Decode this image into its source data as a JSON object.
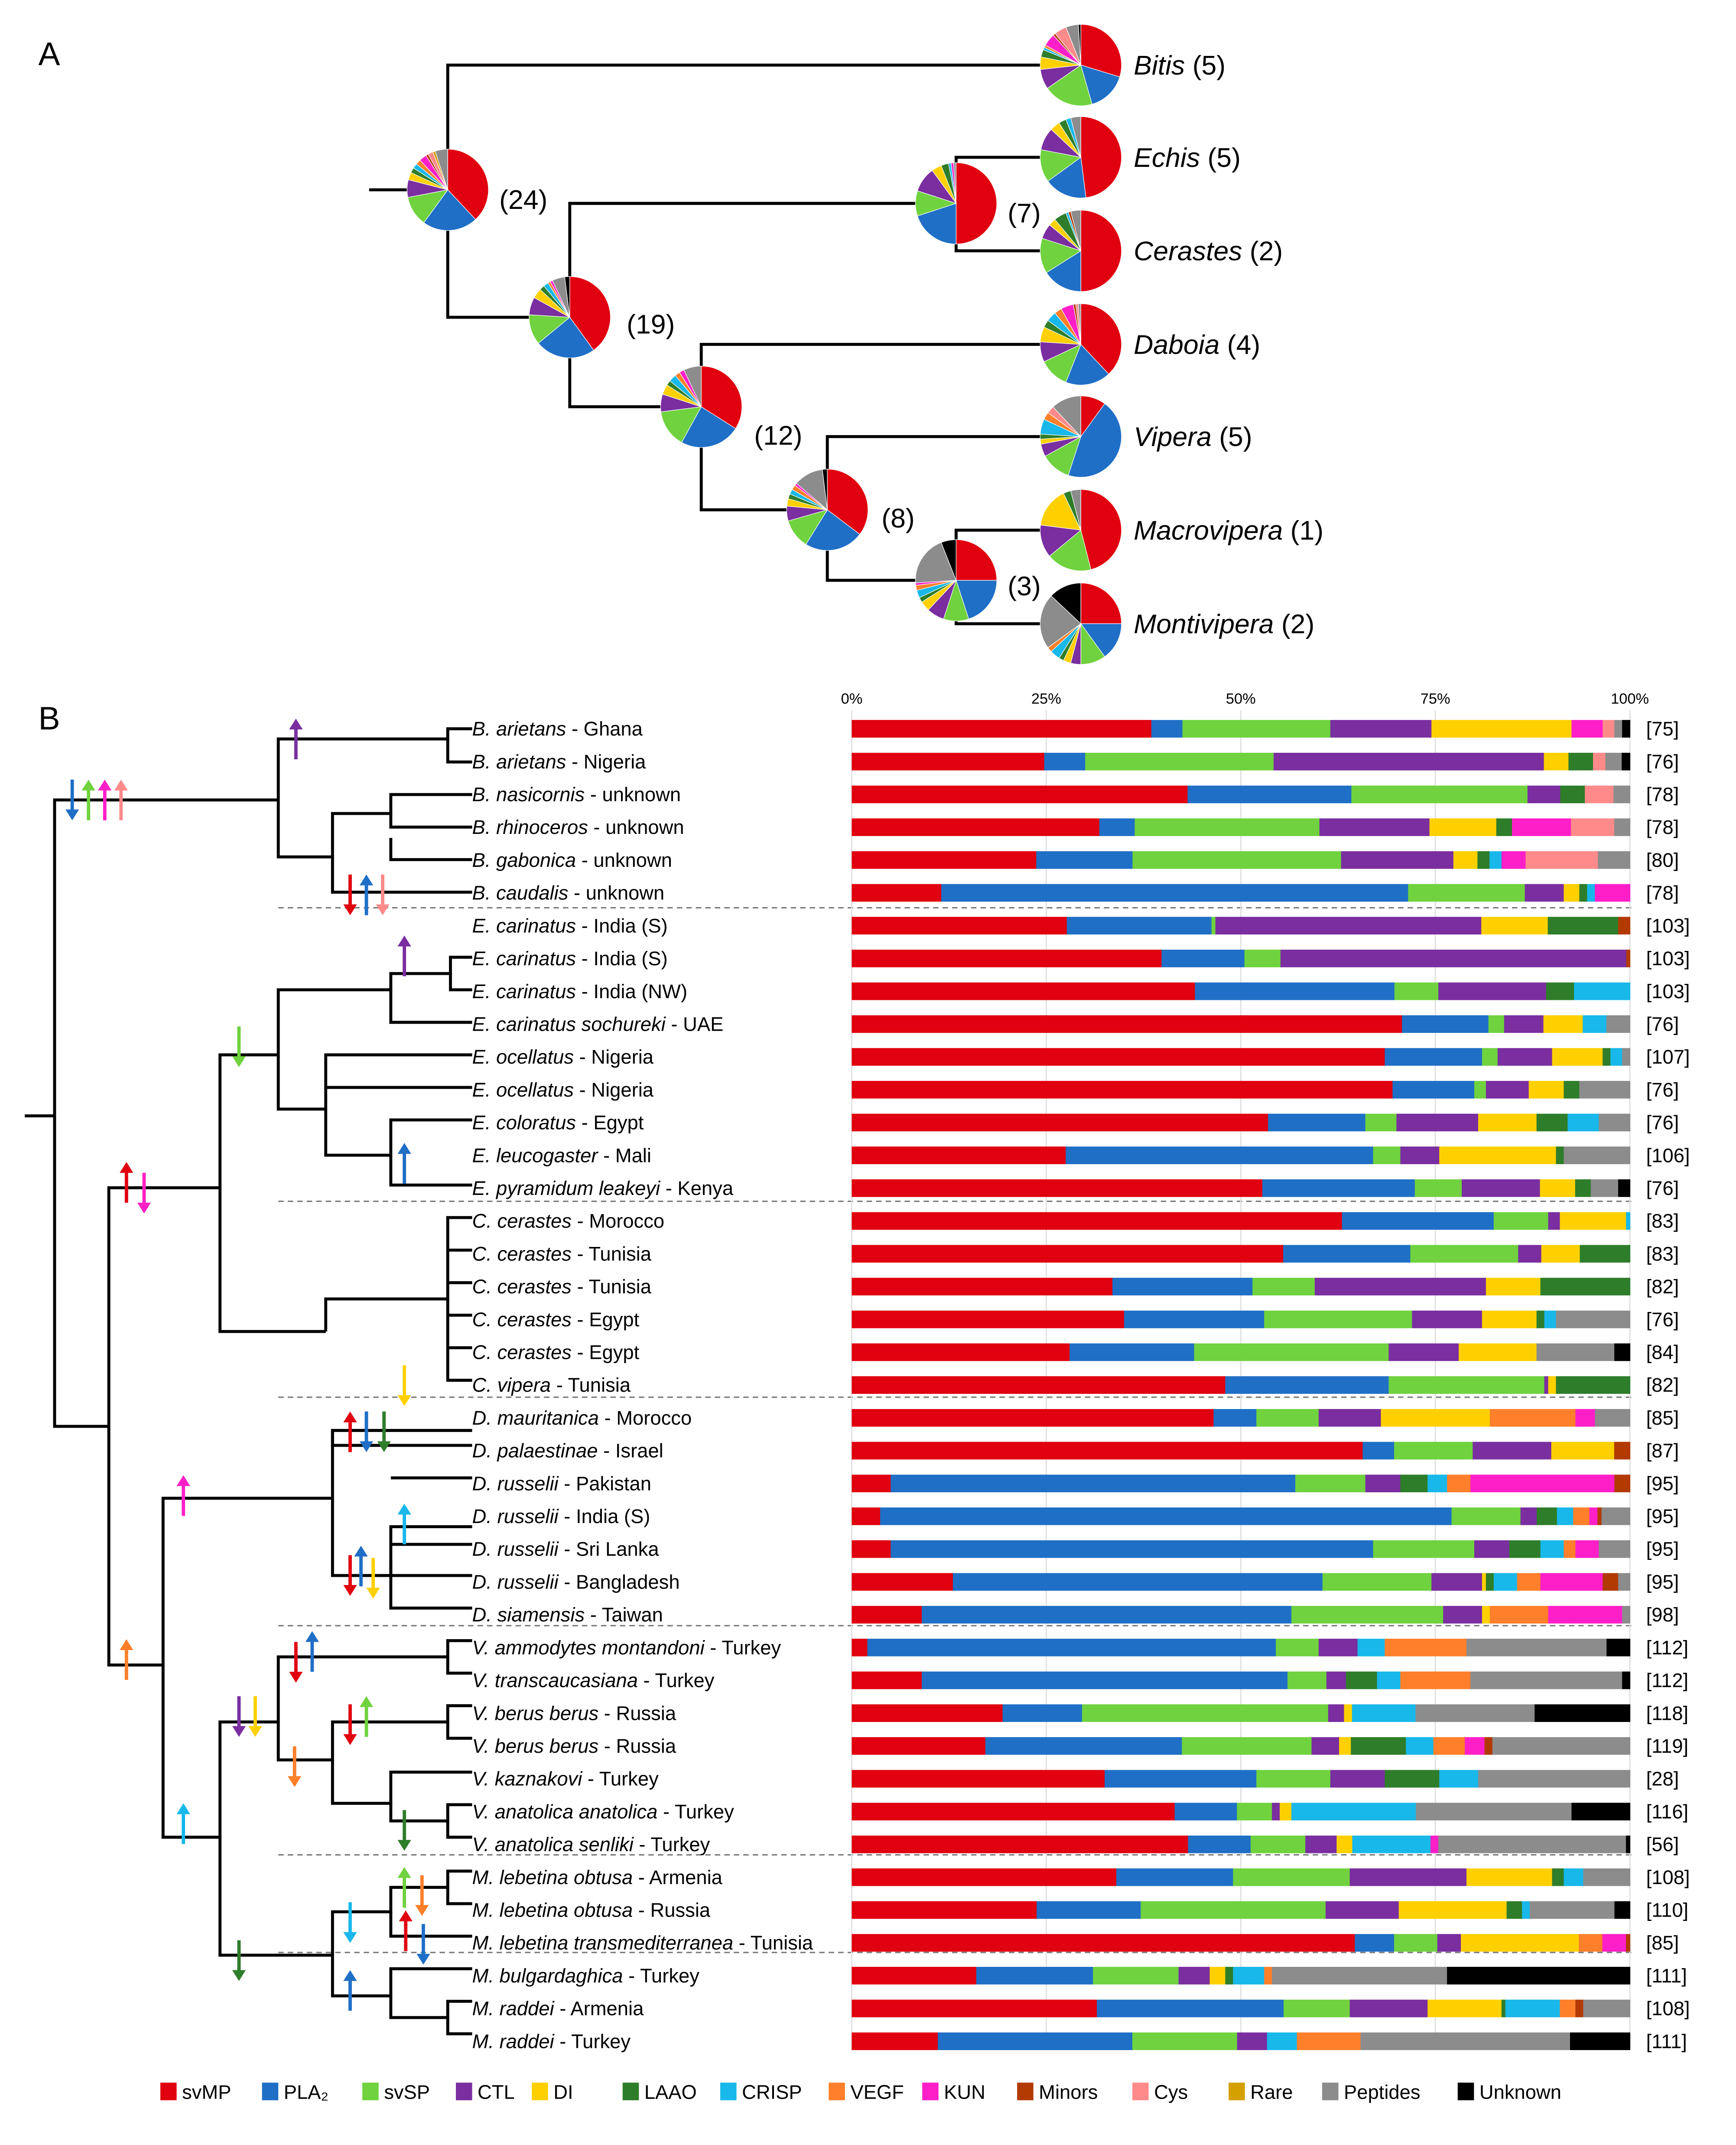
{
  "panels": {
    "a": "A",
    "b": "B"
  },
  "colors": {
    "svMP": "#e0000f",
    "PLA2": "#1f6fc6",
    "svSP": "#6fd23e",
    "CTL": "#7a2ea0",
    "DI": "#ffd000",
    "LAAO": "#2e7d2a",
    "CRISP": "#18b8ea",
    "VEGF": "#ff7f2a",
    "KUN": "#ff1fc8",
    "Minors": "#b23a00",
    "Cys": "#ff8a8a",
    "Rare": "#d4a000",
    "Peptides": "#8c8c8c",
    "Unknown": "#000000"
  },
  "legend": [
    {
      "key": "svMP",
      "label": "svMP"
    },
    {
      "key": "PLA2",
      "label": "PLA₂"
    },
    {
      "key": "svSP",
      "label": "svSP"
    },
    {
      "key": "CTL",
      "label": "CTL"
    },
    {
      "key": "DI",
      "label": "DI"
    },
    {
      "key": "LAAO",
      "label": "LAAO"
    },
    {
      "key": "CRISP",
      "label": "CRISP"
    },
    {
      "key": "VEGF",
      "label": "VEGF"
    },
    {
      "key": "KUN",
      "label": "KUN"
    },
    {
      "key": "Minors",
      "label": "Minors"
    },
    {
      "key": "Cys",
      "label": "Cys"
    },
    {
      "key": "Rare",
      "label": "Rare"
    },
    {
      "key": "Peptides",
      "label": "Peptides"
    },
    {
      "key": "Unknown",
      "label": "Unknown"
    }
  ],
  "nodes_a": [
    {
      "count": "(24)"
    },
    {
      "count": "(19)"
    },
    {
      "count": "(7)"
    },
    {
      "count": "(12)"
    },
    {
      "count": "(8)"
    },
    {
      "count": "(3)"
    }
  ],
  "tips_a": [
    {
      "genus": "Bitis",
      "count": "(5)"
    },
    {
      "genus": "Echis",
      "count": "(5)"
    },
    {
      "genus": "Cerastes",
      "count": "(2)"
    },
    {
      "genus": "Daboia",
      "count": "(4)"
    },
    {
      "genus": "Vipera",
      "count": "(5)"
    },
    {
      "genus": "Macrovipera",
      "count": "(1)"
    },
    {
      "genus": "Montivipera",
      "count": "(2)"
    }
  ],
  "pies": [
    {
      "v": [
        38,
        22,
        12,
        7,
        3,
        2,
        2,
        2,
        3,
        1,
        2,
        1,
        5,
        0
      ]
    },
    {
      "v": [
        40,
        24,
        12,
        7,
        4,
        2,
        2,
        1,
        1,
        0,
        0,
        0,
        5,
        2
      ]
    },
    {
      "v": [
        50,
        20,
        10,
        10,
        4,
        3,
        1,
        0,
        1,
        0,
        0,
        0,
        1,
        0
      ]
    },
    {
      "v": [
        34,
        24,
        15,
        7,
        4,
        2,
        3,
        2,
        2,
        0,
        0,
        0,
        7,
        0
      ]
    },
    {
      "v": [
        36,
        24,
        12,
        6,
        3,
        2,
        2,
        2,
        1,
        0,
        0,
        0,
        12,
        2
      ]
    },
    {
      "v": [
        25,
        20,
        10,
        7,
        4,
        2,
        3,
        2,
        1,
        0,
        0,
        0,
        20,
        6
      ]
    },
    {
      "v": [
        30,
        16,
        20,
        8,
        5,
        3,
        1,
        1,
        5,
        1,
        5,
        0,
        5,
        1
      ]
    },
    {
      "v": [
        48,
        17,
        13,
        9,
        4,
        3,
        2,
        0,
        0,
        0,
        0,
        0,
        4,
        0
      ]
    },
    {
      "v": [
        50,
        16,
        14,
        6,
        3,
        5,
        1,
        0,
        0,
        1,
        0,
        0,
        4,
        0
      ]
    },
    {
      "v": [
        38,
        18,
        12,
        8,
        6,
        3,
        4,
        3,
        5,
        1,
        1,
        0,
        1,
        0
      ]
    },
    {
      "v": [
        10,
        45,
        12,
        5,
        2,
        2,
        6,
        3,
        0,
        0,
        3,
        0,
        12,
        0
      ]
    },
    {
      "v": [
        46,
        0,
        18,
        13,
        16,
        3,
        0,
        0,
        0,
        0,
        0,
        0,
        4,
        0
      ]
    },
    {
      "v": [
        25,
        15,
        10,
        4,
        3,
        2,
        4,
        2,
        0,
        0,
        0,
        0,
        22,
        13
      ]
    }
  ],
  "taxa": [
    {
      "name": "B. arietans",
      "loc": " - Ghana",
      "ref": "[75]"
    },
    {
      "name": "B. arietans",
      "loc": " - Nigeria",
      "ref": "[76]"
    },
    {
      "name": "B. nasicornis",
      "loc": " - unknown",
      "ref": "[78]"
    },
    {
      "name": "B. rhinoceros",
      "loc": " - unknown",
      "ref": "[78]"
    },
    {
      "name": "B. gabonica",
      "loc": " - unknown",
      "ref": "[80]"
    },
    {
      "name": "B. caudalis",
      "loc": " - unknown",
      "ref": "[78]"
    },
    {
      "name": "E. carinatus",
      "loc": " - India (S)",
      "ref": "[103]"
    },
    {
      "name": "E. carinatus",
      "loc": " - India (S)",
      "ref": "[103]"
    },
    {
      "name": "E. carinatus",
      "loc": " - India (NW)",
      "ref": "[103]"
    },
    {
      "name": "E. carinatus sochureki",
      "loc": " - UAE",
      "ref": "[76]"
    },
    {
      "name": "E. ocellatus",
      "loc": " - Nigeria",
      "ref": "[107]"
    },
    {
      "name": "E. ocellatus",
      "loc": " - Nigeria",
      "ref": "[76]"
    },
    {
      "name": "E. coloratus",
      "loc": " - Egypt",
      "ref": "[76]"
    },
    {
      "name": "E. leucogaster",
      "loc": " - Mali",
      "ref": "[106]"
    },
    {
      "name": "E. pyramidum leakeyi",
      "loc": " - Kenya",
      "ref": "[76]"
    },
    {
      "name": "C. cerastes",
      "loc": " - Morocco",
      "ref": "[83]"
    },
    {
      "name": "C. cerastes",
      "loc": " - Tunisia",
      "ref": "[83]"
    },
    {
      "name": "C. cerastes",
      "loc": " - Tunisia",
      "ref": "[82]"
    },
    {
      "name": "C. cerastes",
      "loc": " - Egypt",
      "ref": "[76]"
    },
    {
      "name": "C. cerastes",
      "loc": " - Egypt",
      "ref": "[84]"
    },
    {
      "name": "C. vipera",
      "loc": " - Tunisia",
      "ref": "[82]"
    },
    {
      "name": "D. mauritanica",
      "loc": " - Morocco",
      "ref": "[85]"
    },
    {
      "name": "D. palaestinae",
      "loc": " - Israel",
      "ref": "[87]"
    },
    {
      "name": "D. russelii",
      "loc": " - Pakistan",
      "ref": "[95]"
    },
    {
      "name": "D. russelii",
      "loc": " - India (S)",
      "ref": "[95]"
    },
    {
      "name": "D. russelii",
      "loc": " - Sri Lanka",
      "ref": "[95]"
    },
    {
      "name": "D. russelii",
      "loc": " - Bangladesh",
      "ref": "[95]"
    },
    {
      "name": "D. siamensis",
      "loc": " - Taiwan",
      "ref": "[98]"
    },
    {
      "name": "V. ammodytes montandoni",
      "loc": " - Turkey",
      "ref": "[112]"
    },
    {
      "name": "V. transcaucasiana",
      "loc": " - Turkey",
      "ref": "[112]"
    },
    {
      "name": "V. berus berus",
      "loc": " - Russia",
      "ref": "[118]"
    },
    {
      "name": "V. berus berus",
      "loc": " - Russia",
      "ref": "[119]"
    },
    {
      "name": "V. kaznakovi",
      "loc": " - Turkey",
      "ref": "[28]"
    },
    {
      "name": "V. anatolica anatolica",
      "loc": " - Turkey",
      "ref": "[116]"
    },
    {
      "name": "V. anatolica senliki",
      "loc": " - Turkey",
      "ref": "[56]"
    },
    {
      "name": "M. lebetina obtusa",
      "loc": " - Armenia",
      "ref": "[108]"
    },
    {
      "name": "M. lebetina obtusa",
      "loc": " - Russia",
      "ref": "[110]"
    },
    {
      "name": "M. lebetina transmediterranea",
      "loc": " - Tunisia",
      "ref": "[85]"
    },
    {
      "name": "M. bulgardaghica",
      "loc": " - Turkey",
      "ref": "[111]"
    },
    {
      "name": "M. raddei",
      "loc": " - Armenia",
      "ref": "[108]"
    },
    {
      "name": "M. raddei",
      "loc": " - Turkey",
      "ref": "[111]"
    }
  ],
  "chart_data": {
    "type": "bar",
    "orientation": "horizontal",
    "stacked": true,
    "xaxis": {
      "min": 0,
      "max": 100,
      "ticks": [
        "0%",
        "25%",
        "50%",
        "75%",
        "100%"
      ]
    },
    "series_keys": [
      "svMP",
      "PLA2",
      "svSP",
      "CTL",
      "DI",
      "LAAO",
      "CRISP",
      "VEGF",
      "KUN",
      "Minors",
      "Cys",
      "Rare",
      "Peptides",
      "Unknown"
    ],
    "rows": [
      [
        38.5,
        4,
        19,
        13,
        18,
        0,
        0,
        0,
        4,
        0,
        1.5,
        0,
        1,
        1
      ],
      [
        23.5,
        5,
        23,
        33,
        3,
        3,
        0,
        0,
        0,
        0,
        1.5,
        0,
        2,
        1
      ],
      [
        41,
        20,
        21.5,
        4,
        0,
        3,
        0,
        0,
        0,
        0,
        3.5,
        0,
        2,
        0
      ],
      [
        31.5,
        4.5,
        23.5,
        14,
        8.5,
        2,
        0,
        0,
        7.5,
        0,
        5.5,
        0,
        2,
        0
      ],
      [
        23,
        12,
        26,
        14,
        3,
        1.5,
        1.5,
        0,
        3,
        0,
        9,
        0,
        4,
        0
      ],
      [
        11.5,
        60,
        15,
        5,
        2,
        1,
        1,
        0,
        4.5,
        0,
        0,
        0,
        0,
        0
      ],
      [
        27.5,
        18.5,
        0.5,
        34,
        8.5,
        9,
        0,
        0,
        0,
        1.5,
        0,
        0,
        0,
        0
      ],
      [
        43,
        11.5,
        5,
        48,
        0,
        0,
        0,
        0,
        0,
        0.5,
        0,
        0,
        0,
        0
      ],
      [
        43,
        25,
        5.5,
        13.5,
        0,
        3.5,
        7,
        0,
        0,
        0,
        0,
        0,
        0,
        0
      ],
      [
        70,
        11,
        2,
        5,
        5,
        0,
        3,
        0,
        0,
        0,
        0,
        0,
        3,
        0
      ],
      [
        68.5,
        12.5,
        2,
        7,
        6.5,
        1,
        1.5,
        0,
        0,
        0,
        0,
        0,
        1,
        0
      ],
      [
        69.5,
        10.5,
        1.5,
        5.5,
        4.5,
        2,
        0,
        0,
        0,
        0,
        0,
        0,
        6.5,
        0
      ],
      [
        53.5,
        12.5,
        4,
        10.5,
        7.5,
        4,
        4,
        0,
        0,
        0,
        0,
        0,
        4,
        0
      ],
      [
        27.5,
        39.5,
        3.5,
        5,
        15,
        1,
        0,
        0,
        0,
        0,
        0,
        0,
        8.5,
        0
      ],
      [
        52.5,
        19.5,
        6,
        10,
        4.5,
        2,
        0,
        0,
        0,
        0,
        0,
        0,
        3.5,
        1.5
      ],
      [
        63,
        19.5,
        7,
        1.5,
        8.5,
        0,
        0.5,
        0,
        0,
        0,
        0,
        0,
        0,
        0
      ],
      [
        56,
        16.5,
        14,
        3,
        5,
        6.5,
        0,
        0,
        0,
        0,
        0,
        0,
        0,
        0
      ],
      [
        33.5,
        18,
        8,
        22,
        7,
        11.5,
        0,
        0,
        0,
        0,
        0,
        0,
        0,
        0
      ],
      [
        35,
        18,
        19,
        9,
        7,
        1,
        1.5,
        0,
        0,
        0,
        0,
        0,
        9.5,
        0
      ],
      [
        28,
        16,
        25,
        9,
        10,
        0,
        0,
        0,
        0,
        0,
        0,
        0,
        10,
        2
      ],
      [
        48,
        21,
        20,
        0.5,
        1,
        9.5,
        0,
        0,
        0,
        0,
        0,
        0,
        0,
        0
      ],
      [
        46.5,
        5.5,
        8,
        8,
        14,
        0,
        0,
        11,
        2.5,
        0,
        0,
        0,
        4.5,
        0
      ],
      [
        65,
        4,
        10,
        10,
        8,
        0,
        0,
        0,
        0,
        2,
        0,
        0,
        0,
        0
      ],
      [
        5,
        52,
        9,
        4.5,
        0,
        3.5,
        2.5,
        3,
        18.5,
        2,
        0,
        0,
        0,
        0
      ],
      [
        3.5,
        70.5,
        8.5,
        2,
        0,
        2.5,
        2,
        2,
        1,
        0.5,
        0,
        0,
        3.5,
        0
      ],
      [
        5,
        62,
        13,
        4.5,
        0,
        4,
        3,
        1.5,
        3,
        0,
        0,
        0,
        4,
        0
      ],
      [
        13,
        47.5,
        14,
        6.5,
        0.5,
        1,
        3,
        3,
        8,
        2,
        0,
        0,
        1.5,
        0
      ],
      [
        9,
        47.5,
        19.5,
        5,
        1,
        0,
        0,
        7.5,
        9.5,
        0,
        0,
        0,
        1,
        0
      ],
      [
        2,
        52.5,
        5.5,
        5,
        0,
        0,
        3.5,
        10.5,
        0,
        0,
        0,
        0,
        18,
        3
      ],
      [
        9,
        47,
        5,
        2.5,
        0,
        4,
        3,
        9,
        0,
        0,
        0,
        0,
        19.5,
        1
      ],
      [
        19,
        10,
        31,
        2,
        1,
        0,
        8,
        0,
        0,
        0,
        0,
        0,
        15,
        12
      ],
      [
        17,
        25,
        16.5,
        3.5,
        1.5,
        7,
        3.5,
        4,
        2.5,
        1,
        0,
        0,
        17.5,
        0
      ],
      [
        32.5,
        19.5,
        9.5,
        7,
        0,
        7,
        5,
        0,
        0,
        0,
        0,
        0,
        19.5,
        0
      ],
      [
        41.5,
        8,
        4.5,
        1,
        1.5,
        0,
        16,
        0,
        0,
        0,
        0,
        0,
        20,
        7.5
      ],
      [
        43,
        8,
        7,
        4,
        2,
        0,
        10,
        0,
        1,
        0,
        0,
        0,
        24,
        0.5
      ],
      [
        34,
        15,
        15,
        15,
        11,
        1.5,
        2.5,
        0,
        0,
        0,
        0,
        0,
        6,
        0
      ],
      [
        24,
        13.5,
        24,
        9.5,
        14,
        2,
        1,
        0,
        0,
        0,
        0,
        0,
        11,
        2
      ],
      [
        64,
        5,
        5.5,
        3,
        15,
        0,
        0,
        3,
        3,
        0.5,
        0,
        0,
        0,
        0
      ],
      [
        16,
        15,
        11,
        4,
        2,
        1,
        4,
        1,
        0,
        0,
        0,
        0,
        22.5,
        23.5
      ],
      [
        31.5,
        24,
        8.5,
        10,
        9.5,
        0.5,
        7,
        2,
        0,
        1,
        0,
        0,
        6,
        0
      ],
      [
        11.5,
        26,
        14,
        4,
        0,
        0,
        4,
        8.5,
        0,
        0,
        0,
        0,
        28,
        8
      ]
    ]
  }
}
